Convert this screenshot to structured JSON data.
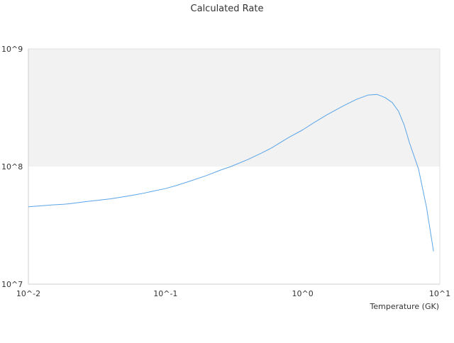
{
  "chart_data": {
    "type": "line",
    "title": "Calculated Rate",
    "xlabel": "Temperature (GK)",
    "ylabel": "",
    "xscale": "log",
    "yscale": "log",
    "xlim": [
      0.01,
      10
    ],
    "ylim": [
      10000000,
      1000000000
    ],
    "grid": false,
    "legend": "none",
    "alternating_bands": true,
    "x_tick_labels": [
      "10^-2",
      "10^-1",
      "10^0",
      "10^1"
    ],
    "y_tick_labels": [
      "10^7",
      "10^8",
      "10^9"
    ],
    "x_ticks": [
      0.01,
      0.1,
      1,
      10
    ],
    "y_ticks": [
      10000000,
      100000000,
      1000000000
    ],
    "colors": {
      "line": "#5aa4e8",
      "band": "#f2f2f2",
      "axis": "#cccccc",
      "text": "#333333"
    },
    "series": [
      {
        "x": [
          0.01,
          0.012,
          0.015,
          0.018,
          0.02,
          0.025,
          0.03,
          0.04,
          0.05,
          0.06,
          0.07,
          0.08,
          0.1,
          0.12,
          0.15,
          0.2,
          0.25,
          0.3,
          0.4,
          0.5,
          0.6,
          0.7,
          0.8,
          1.0,
          1.2,
          1.5,
          2.0,
          2.5,
          3.0,
          3.5,
          4.0,
          4.5,
          5.0,
          5.5,
          6.0,
          7.0,
          8.0,
          9.0
        ],
        "values": [
          45500000,
          46200000,
          47200000,
          47800000,
          48300000,
          50000000,
          51200000,
          53200000,
          55500000,
          57500000,
          59500000,
          61500000,
          65000000,
          69000000,
          75000000,
          84000000,
          93000000,
          100000000,
          115000000,
          130000000,
          145000000,
          162000000,
          178000000,
          205000000,
          235000000,
          275000000,
          330000000,
          375000000,
          405000000,
          410000000,
          385000000,
          350000000,
          295000000,
          225000000,
          160000000,
          95000000,
          45000000,
          19000000
        ]
      }
    ]
  }
}
